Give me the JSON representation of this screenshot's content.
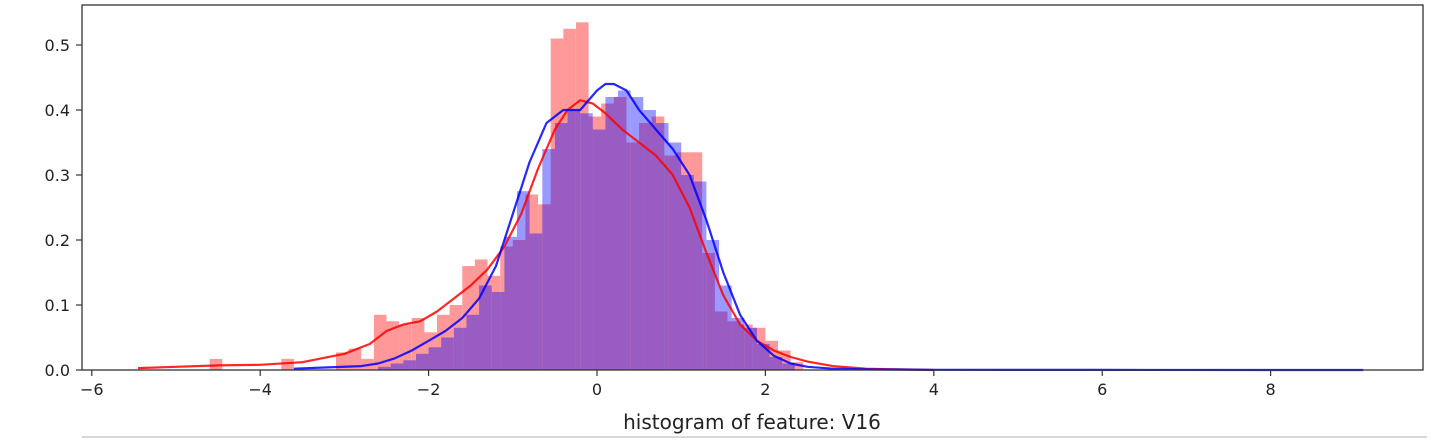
{
  "chart_data": {
    "type": "histogram",
    "title": "",
    "xlabel": "histogram of feature: V16",
    "ylabel": "",
    "xlim": [
      -6.2,
      9.7
    ],
    "ylim": [
      0,
      0.565
    ],
    "xticks": [
      -6,
      -4,
      -2,
      0,
      2,
      4,
      6,
      8
    ],
    "xtick_labels": [
      "−6",
      "−4",
      "−2",
      "0",
      "2",
      "4",
      "6",
      "8"
    ],
    "yticks": [
      0.0,
      0.1,
      0.2,
      0.3,
      0.4,
      0.5
    ],
    "ytick_labels": [
      "0.0",
      "0.1",
      "0.2",
      "0.3",
      "0.4",
      "0.5"
    ],
    "grid": false,
    "legend": false,
    "colors": {
      "red": "#ff0000",
      "blue": "#0000ff",
      "overlap": "#9f5fc0",
      "frame": "#333333"
    },
    "series": [
      {
        "color": "red",
        "bars": [
          [
            -4.6,
            -4.45,
            0.017
          ],
          [
            -3.75,
            -3.6,
            0.017
          ],
          [
            -3.1,
            -2.95,
            0.027
          ],
          [
            -2.95,
            -2.8,
            0.033
          ],
          [
            -2.8,
            -2.65,
            0.017
          ],
          [
            -2.65,
            -2.5,
            0.085
          ],
          [
            -2.5,
            -2.35,
            0.075
          ],
          [
            -2.35,
            -2.2,
            0.07
          ],
          [
            -2.2,
            -2.05,
            0.08
          ],
          [
            -2.05,
            -1.9,
            0.058
          ],
          [
            -1.9,
            -1.75,
            0.085
          ],
          [
            -1.75,
            -1.6,
            0.1
          ],
          [
            -1.6,
            -1.45,
            0.16
          ],
          [
            -1.45,
            -1.3,
            0.17
          ],
          [
            -1.3,
            -1.15,
            0.145
          ],
          [
            -1.15,
            -1.0,
            0.19
          ],
          [
            -1.0,
            -0.85,
            0.2
          ],
          [
            -0.85,
            -0.7,
            0.27
          ],
          [
            -0.7,
            -0.55,
            0.255
          ],
          [
            -0.55,
            -0.4,
            0.51
          ],
          [
            -0.4,
            -0.25,
            0.525
          ],
          [
            -0.25,
            -0.1,
            0.535
          ],
          [
            -0.1,
            0.05,
            0.39
          ],
          [
            0.05,
            0.2,
            0.41
          ],
          [
            0.2,
            0.35,
            0.42
          ],
          [
            0.35,
            0.5,
            0.35
          ],
          [
            0.5,
            0.65,
            0.38
          ],
          [
            0.65,
            0.8,
            0.39
          ],
          [
            0.8,
            0.95,
            0.33
          ],
          [
            0.95,
            1.1,
            0.335
          ],
          [
            1.1,
            1.25,
            0.335
          ],
          [
            1.25,
            1.4,
            0.18
          ],
          [
            1.4,
            1.55,
            0.09
          ],
          [
            1.55,
            1.7,
            0.075
          ],
          [
            1.7,
            1.85,
            0.07
          ],
          [
            1.85,
            2.0,
            0.065
          ],
          [
            2.0,
            2.15,
            0.045
          ],
          [
            2.15,
            2.3,
            0.03
          ],
          [
            2.3,
            2.45,
            0.012
          ]
        ],
        "kde_x": [
          -5.45,
          -5.0,
          -4.5,
          -4.0,
          -3.5,
          -3.0,
          -2.7,
          -2.5,
          -2.3,
          -2.1,
          -1.9,
          -1.7,
          -1.5,
          -1.3,
          -1.1,
          -0.9,
          -0.7,
          -0.5,
          -0.35,
          -0.2,
          -0.05,
          0.1,
          0.3,
          0.5,
          0.7,
          0.9,
          1.1,
          1.3,
          1.5,
          1.7,
          1.9,
          2.1,
          2.3,
          2.5,
          2.8,
          3.2,
          3.6,
          4.0
        ],
        "kde_y": [
          0.003,
          0.005,
          0.007,
          0.008,
          0.012,
          0.025,
          0.04,
          0.06,
          0.07,
          0.075,
          0.09,
          0.11,
          0.13,
          0.155,
          0.19,
          0.24,
          0.31,
          0.37,
          0.4,
          0.415,
          0.41,
          0.395,
          0.37,
          0.35,
          0.33,
          0.3,
          0.25,
          0.18,
          0.115,
          0.07,
          0.045,
          0.03,
          0.02,
          0.013,
          0.006,
          0.002,
          0.001,
          0.0
        ]
      },
      {
        "color": "blue",
        "bars": [
          [
            -2.6,
            -2.45,
            0.005
          ],
          [
            -2.45,
            -2.3,
            0.01
          ],
          [
            -2.3,
            -2.15,
            0.015
          ],
          [
            -2.15,
            -2.0,
            0.025
          ],
          [
            -2.0,
            -1.85,
            0.035
          ],
          [
            -1.85,
            -1.7,
            0.05
          ],
          [
            -1.7,
            -1.55,
            0.065
          ],
          [
            -1.55,
            -1.4,
            0.085
          ],
          [
            -1.4,
            -1.25,
            0.13
          ],
          [
            -1.25,
            -1.1,
            0.12
          ],
          [
            -1.1,
            -0.95,
            0.205
          ],
          [
            -0.95,
            -0.8,
            0.275
          ],
          [
            -0.8,
            -0.65,
            0.21
          ],
          [
            -0.65,
            -0.5,
            0.34
          ],
          [
            -0.5,
            -0.35,
            0.38
          ],
          [
            -0.35,
            -0.2,
            0.4
          ],
          [
            -0.2,
            -0.05,
            0.395
          ],
          [
            -0.05,
            0.1,
            0.37
          ],
          [
            0.1,
            0.25,
            0.42
          ],
          [
            0.25,
            0.4,
            0.43
          ],
          [
            0.4,
            0.55,
            0.42
          ],
          [
            0.55,
            0.7,
            0.4
          ],
          [
            0.7,
            0.85,
            0.38
          ],
          [
            0.85,
            1.0,
            0.35
          ],
          [
            1.0,
            1.15,
            0.3
          ],
          [
            1.15,
            1.3,
            0.29
          ],
          [
            1.3,
            1.45,
            0.2
          ],
          [
            1.45,
            1.6,
            0.13
          ],
          [
            1.6,
            1.75,
            0.08
          ],
          [
            1.75,
            1.9,
            0.065
          ],
          [
            1.9,
            2.05,
            0.04
          ],
          [
            2.05,
            2.2,
            0.02
          ],
          [
            2.2,
            2.35,
            0.01
          ]
        ],
        "kde_x": [
          -3.6,
          -3.2,
          -2.8,
          -2.6,
          -2.4,
          -2.2,
          -2.0,
          -1.8,
          -1.6,
          -1.4,
          -1.2,
          -1.0,
          -0.8,
          -0.6,
          -0.4,
          -0.2,
          0.0,
          0.1,
          0.2,
          0.35,
          0.5,
          0.7,
          0.9,
          1.1,
          1.3,
          1.5,
          1.7,
          1.9,
          2.1,
          2.3,
          2.5,
          2.8,
          3.2,
          4.0,
          6.0,
          9.1
        ],
        "kde_y": [
          0.002,
          0.004,
          0.006,
          0.01,
          0.018,
          0.03,
          0.045,
          0.06,
          0.08,
          0.11,
          0.16,
          0.24,
          0.32,
          0.38,
          0.4,
          0.4,
          0.43,
          0.44,
          0.44,
          0.43,
          0.4,
          0.37,
          0.34,
          0.3,
          0.23,
          0.15,
          0.085,
          0.045,
          0.022,
          0.01,
          0.005,
          0.002,
          0.001,
          0.0003,
          0.0001,
          0.0
        ]
      }
    ]
  }
}
